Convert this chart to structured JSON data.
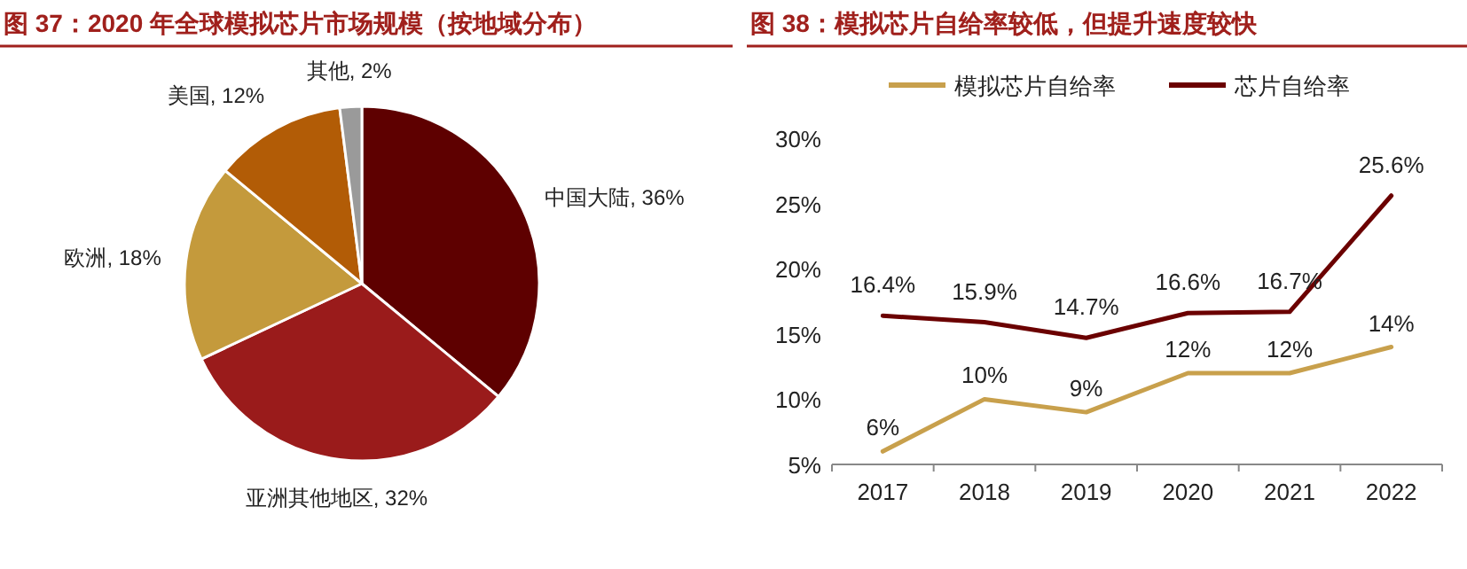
{
  "chart_data": [
    {
      "type": "pie",
      "title": "图 37：2020 年全球模拟芯片市场规模（按地域分布）",
      "categories": [
        "中国大陆",
        "亚洲其他地区",
        "欧洲",
        "美国",
        "其他"
      ],
      "values": [
        36,
        32,
        18,
        12,
        2
      ],
      "colors": [
        "#5e0000",
        "#9a1b1b",
        "#c49a3c",
        "#b25c06",
        "#9a9a9a"
      ],
      "value_labels": [
        "36%",
        "32%",
        "18%",
        "12%",
        "2%"
      ]
    },
    {
      "type": "line",
      "title": "图 38：模拟芯片自给率较低，但提升速度较快",
      "categories": [
        "2017",
        "2018",
        "2019",
        "2020",
        "2021",
        "2022"
      ],
      "series": [
        {
          "name": "模拟芯片自给率",
          "color": "#c8a04c",
          "values": [
            6,
            10,
            9,
            12,
            12,
            14
          ],
          "value_labels": [
            "6%",
            "10%",
            "9%",
            "12%",
            "12%",
            "14%"
          ]
        },
        {
          "name": "芯片自给率",
          "color": "#6b0000",
          "values": [
            16.4,
            15.9,
            14.7,
            16.6,
            16.7,
            25.6
          ],
          "value_labels": [
            "16.4%",
            "15.9%",
            "14.7%",
            "16.6%",
            "16.7%",
            "25.6%"
          ]
        }
      ],
      "ylim": [
        5,
        30
      ],
      "yticks": [
        {
          "value": 5,
          "label": "5%"
        },
        {
          "value": 10,
          "label": "10%"
        },
        {
          "value": 15,
          "label": "15%"
        },
        {
          "value": 20,
          "label": "20%"
        },
        {
          "value": 25,
          "label": "25%"
        },
        {
          "value": 30,
          "label": "30%"
        }
      ],
      "legend": "top",
      "grid": false
    }
  ]
}
